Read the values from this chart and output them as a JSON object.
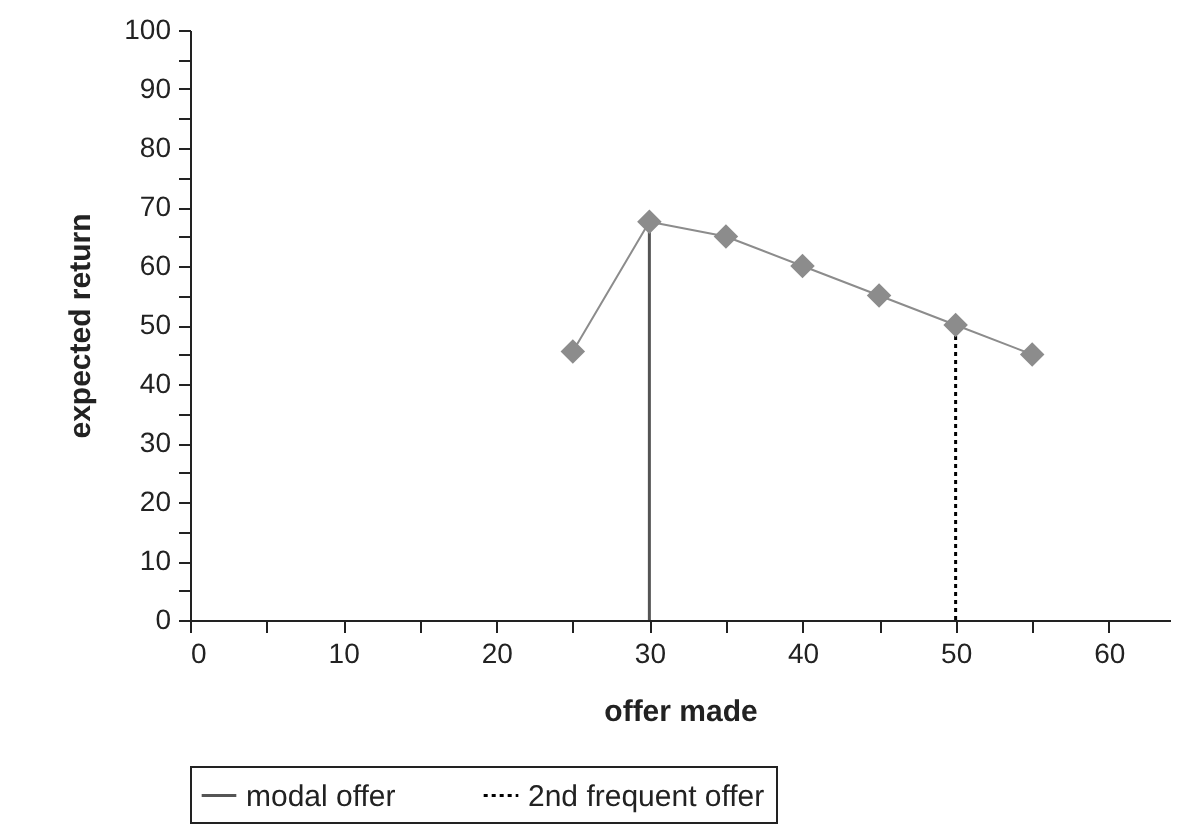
{
  "chart_data": {
    "type": "line",
    "xlabel": "offer made",
    "ylabel": "expected return",
    "x": [
      25,
      30,
      35,
      40,
      45,
      50,
      55
    ],
    "series": [
      {
        "color": "#8c8c8c",
        "values": [
          45.5,
          67.5,
          65,
          60,
          55,
          50,
          45
        ]
      }
    ],
    "xlim": [
      0,
      64
    ],
    "xticks": [
      0,
      {
        "value": 5,
        "label": null
      },
      10,
      {
        "value": 15,
        "label": null
      },
      20,
      {
        "value": 25,
        "label": null
      },
      30,
      {
        "value": 35,
        "label": null
      },
      40,
      {
        "value": 45,
        "label": null
      },
      50,
      {
        "value": 55,
        "label": null
      },
      60
    ],
    "ylim": [
      0,
      100
    ],
    "yticks": [
      0,
      {
        "value": 5,
        "label": null
      },
      10,
      {
        "value": 15,
        "label": null
      },
      20,
      {
        "value": 25,
        "label": null
      },
      30,
      {
        "value": 35,
        "label": null
      },
      40,
      {
        "value": 45,
        "label": null
      },
      50,
      {
        "value": 55,
        "label": null
      },
      60,
      {
        "value": 65,
        "label": null
      },
      70,
      {
        "value": 75,
        "label": null
      },
      80,
      {
        "value": 85,
        "label": null
      },
      90,
      {
        "value": 95,
        "label": null
      },
      100
    ],
    "ref_lines": [
      {
        "axis": "x",
        "value": 30,
        "label": "modal offer",
        "line_style": "solid",
        "color": "#555555"
      },
      {
        "axis": "x",
        "value": 50,
        "label": "2nd frequent offer",
        "line_style": "dotted",
        "color": "#000000"
      }
    ],
    "marker": "diamond",
    "grid": false,
    "legend": "bottom"
  }
}
